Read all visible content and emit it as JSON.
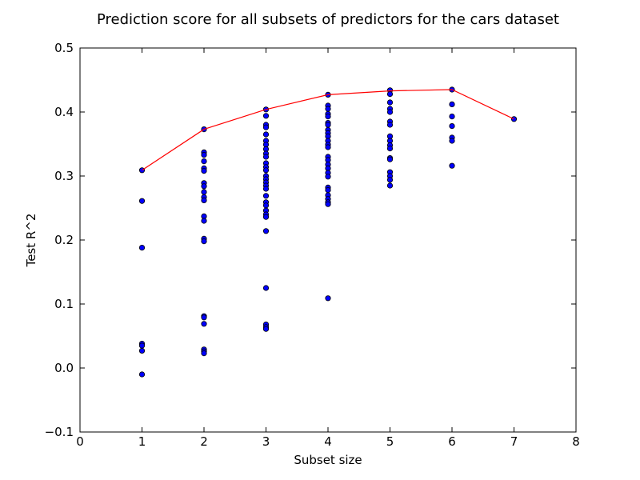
{
  "chart_data": {
    "type": "scatter",
    "title": "Prediction score for all subsets of predictors for the cars dataset",
    "xlabel": "Subset size",
    "ylabel": "Test R^2",
    "xlim": [
      0,
      8
    ],
    "ylim": [
      -0.1,
      0.5
    ],
    "xticks": [
      "0",
      "1",
      "2",
      "3",
      "4",
      "5",
      "6",
      "7",
      "8"
    ],
    "yticks": [
      "−0.1",
      "0.0",
      "0.1",
      "0.2",
      "0.3",
      "0.4",
      "0.5"
    ],
    "grid": false,
    "legend": "none",
    "colors": {
      "points": "#0000ff",
      "point_edge": "#000000",
      "line": "#ff0000"
    },
    "series": [
      {
        "type": "scatter",
        "points": [
          [
            1,
            0.309
          ],
          [
            1,
            0.261
          ],
          [
            1,
            0.188
          ],
          [
            1,
            0.038
          ],
          [
            1,
            0.035
          ],
          [
            1,
            0.027
          ],
          [
            1,
            -0.01
          ],
          [
            2,
            0.373
          ],
          [
            2,
            0.337
          ],
          [
            2,
            0.333
          ],
          [
            2,
            0.323
          ],
          [
            2,
            0.312
          ],
          [
            2,
            0.308
          ],
          [
            2,
            0.289
          ],
          [
            2,
            0.284
          ],
          [
            2,
            0.275
          ],
          [
            2,
            0.267
          ],
          [
            2,
            0.262
          ],
          [
            2,
            0.237
          ],
          [
            2,
            0.23
          ],
          [
            2,
            0.202
          ],
          [
            2,
            0.198
          ],
          [
            2,
            0.081
          ],
          [
            2,
            0.079
          ],
          [
            2,
            0.069
          ],
          [
            2,
            0.029
          ],
          [
            2,
            0.026
          ],
          [
            2,
            0.023
          ],
          [
            3,
            0.404
          ],
          [
            3,
            0.394
          ],
          [
            3,
            0.38
          ],
          [
            3,
            0.376
          ],
          [
            3,
            0.365
          ],
          [
            3,
            0.355
          ],
          [
            3,
            0.349
          ],
          [
            3,
            0.342
          ],
          [
            3,
            0.335
          ],
          [
            3,
            0.33
          ],
          [
            3,
            0.32
          ],
          [
            3,
            0.314
          ],
          [
            3,
            0.309
          ],
          [
            3,
            0.3
          ],
          [
            3,
            0.295
          ],
          [
            3,
            0.29
          ],
          [
            3,
            0.285
          ],
          [
            3,
            0.28
          ],
          [
            3,
            0.269
          ],
          [
            3,
            0.259
          ],
          [
            3,
            0.254
          ],
          [
            3,
            0.246
          ],
          [
            3,
            0.24
          ],
          [
            3,
            0.236
          ],
          [
            3,
            0.214
          ],
          [
            3,
            0.125
          ],
          [
            3,
            0.068
          ],
          [
            3,
            0.064
          ],
          [
            3,
            0.061
          ],
          [
            4,
            0.427
          ],
          [
            4,
            0.41
          ],
          [
            4,
            0.405
          ],
          [
            4,
            0.397
          ],
          [
            4,
            0.393
          ],
          [
            4,
            0.383
          ],
          [
            4,
            0.38
          ],
          [
            4,
            0.372
          ],
          [
            4,
            0.367
          ],
          [
            4,
            0.362
          ],
          [
            4,
            0.355
          ],
          [
            4,
            0.349
          ],
          [
            4,
            0.345
          ],
          [
            4,
            0.33
          ],
          [
            4,
            0.325
          ],
          [
            4,
            0.318
          ],
          [
            4,
            0.312
          ],
          [
            4,
            0.305
          ],
          [
            4,
            0.299
          ],
          [
            4,
            0.282
          ],
          [
            4,
            0.278
          ],
          [
            4,
            0.27
          ],
          [
            4,
            0.264
          ],
          [
            4,
            0.259
          ],
          [
            4,
            0.256
          ],
          [
            4,
            0.109
          ],
          [
            5,
            0.434
          ],
          [
            5,
            0.428
          ],
          [
            5,
            0.415
          ],
          [
            5,
            0.405
          ],
          [
            5,
            0.4
          ],
          [
            5,
            0.385
          ],
          [
            5,
            0.38
          ],
          [
            5,
            0.362
          ],
          [
            5,
            0.355
          ],
          [
            5,
            0.348
          ],
          [
            5,
            0.343
          ],
          [
            5,
            0.328
          ],
          [
            5,
            0.326
          ],
          [
            5,
            0.306
          ],
          [
            5,
            0.3
          ],
          [
            5,
            0.294
          ],
          [
            5,
            0.285
          ],
          [
            6,
            0.435
          ],
          [
            6,
            0.412
          ],
          [
            6,
            0.393
          ],
          [
            6,
            0.378
          ],
          [
            6,
            0.36
          ],
          [
            6,
            0.355
          ],
          [
            6,
            0.316
          ],
          [
            7,
            0.389
          ]
        ]
      },
      {
        "type": "line",
        "x": [
          1,
          2,
          3,
          4,
          5,
          6,
          7
        ],
        "y": [
          0.309,
          0.373,
          0.404,
          0.427,
          0.433,
          0.435,
          0.389
        ]
      }
    ]
  }
}
